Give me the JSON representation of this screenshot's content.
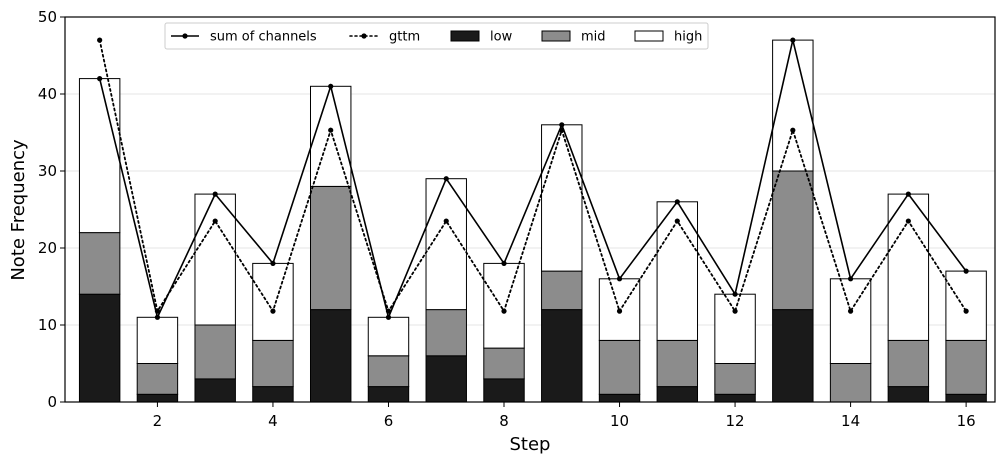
{
  "chart_data": {
    "type": "bar",
    "stacked": true,
    "xlabel": "Step",
    "ylabel": "Note Frequency",
    "ylim": [
      0,
      50
    ],
    "xlim": [
      0.4,
      16.5
    ],
    "yticks": [
      0,
      10,
      20,
      30,
      40,
      50
    ],
    "xticks": [
      2,
      4,
      6,
      8,
      10,
      12,
      14,
      16
    ],
    "grid": "horizontal",
    "legend_position": "top",
    "x": [
      1,
      2,
      3,
      4,
      5,
      6,
      7,
      8,
      9,
      10,
      11,
      12,
      13,
      14,
      15,
      16
    ],
    "bar_series": [
      {
        "name": "low",
        "color": "#1a1a1a",
        "values": [
          14,
          1,
          3,
          2,
          12,
          2,
          6,
          3,
          12,
          1,
          2,
          1,
          12,
          0,
          2,
          1
        ]
      },
      {
        "name": "mid",
        "color": "#8c8c8c",
        "values": [
          8,
          4,
          7,
          6,
          16,
          4,
          6,
          4,
          5,
          7,
          6,
          4,
          18,
          5,
          6,
          7
        ]
      },
      {
        "name": "high",
        "color": "#ffffff",
        "values": [
          20,
          6,
          17,
          10,
          13,
          5,
          17,
          11,
          19,
          8,
          18,
          9,
          17,
          11,
          19,
          9
        ]
      }
    ],
    "line_series": [
      {
        "name": "sum of channels",
        "style": "solid",
        "values": [
          42,
          11,
          27,
          18,
          41,
          11,
          29,
          18,
          36,
          16,
          26,
          14,
          47,
          16,
          27,
          17
        ]
      },
      {
        "name": "gttm",
        "style": "dotted",
        "values": [
          47,
          11.8,
          23.5,
          11.8,
          35.3,
          11.8,
          23.5,
          11.8,
          35.3,
          11.8,
          23.5,
          11.8,
          35.3,
          11.8,
          23.5,
          11.8
        ]
      }
    ]
  }
}
